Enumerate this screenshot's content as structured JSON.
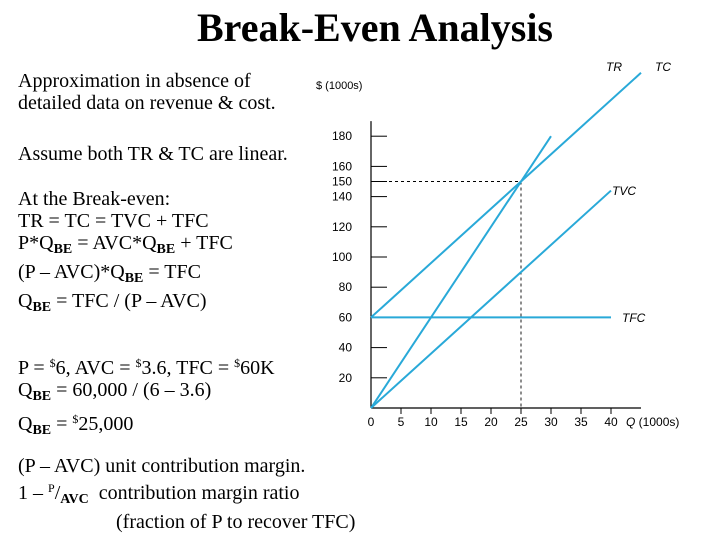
{
  "slide": {
    "title": "Break-Even Analysis",
    "intro": [
      "Approximation in absence of",
      "detailed data on revenue & cost."
    ],
    "assume": "Assume both TR & TC are linear.",
    "breakeven": {
      "heading": "At the Break-even:",
      "l1": "TR = TC = TVC + TFC",
      "l2": {
        "a": "P*Q",
        "b": "BE",
        "c": " = AVC*Q",
        "d": "BE",
        "e": " + TFC"
      },
      "l3": {
        "a": "(P – AVC)*Q",
        "b": "BE",
        "c": " = TFC"
      },
      "l4": {
        "a": "Q",
        "b": "BE",
        "c": " = TFC / (P – AVC)"
      }
    },
    "example": {
      "l1": {
        "a": "P = ",
        "b": "$",
        "c": "6, AVC = ",
        "d": "$",
        "e": "3.6, TFC = ",
        "f": "$",
        "g": "60K"
      },
      "l2": {
        "a": "Q",
        "b": "BE",
        "c": " = 60,000 / (6 – 3.6)"
      },
      "l3": {
        "a": "Q",
        "b": "BE",
        "c": " = ",
        "d": "$",
        "e": "25,000"
      }
    },
    "margin": {
      "l1": "(P – AVC) unit contribution margin.",
      "l2": {
        "a": "1 – ",
        "b": "P",
        "c": "/",
        "d": "AVC",
        "e": "  contribution margin ratio"
      },
      "l3": "(fraction of P to recover TFC)"
    }
  },
  "chart_data": {
    "type": "line",
    "ylabel": "$ (1000s)",
    "xlabel": "Q (1000s)",
    "xticks": [
      0,
      5,
      10,
      15,
      20,
      25,
      30,
      35,
      40
    ],
    "yticks": [
      20,
      40,
      60,
      80,
      100,
      120,
      140,
      150,
      160,
      180
    ],
    "xlim": [
      0,
      45
    ],
    "ylim": [
      0,
      190
    ],
    "series": [
      {
        "name": "TR",
        "x": [
          0,
          30
        ],
        "y": [
          0,
          180
        ],
        "color": "#29a9d8"
      },
      {
        "name": "TC",
        "x": [
          0,
          45
        ],
        "y": [
          60,
          222
        ],
        "color": "#29a9d8"
      },
      {
        "name": "TVC",
        "x": [
          0,
          40
        ],
        "y": [
          0,
          144
        ],
        "color": "#29a9d8"
      },
      {
        "name": "TFC",
        "x": [
          0,
          40
        ],
        "y": [
          60,
          60
        ],
        "color": "#29a9d8"
      }
    ],
    "breakeven": {
      "x": 25,
      "y": 150
    }
  }
}
